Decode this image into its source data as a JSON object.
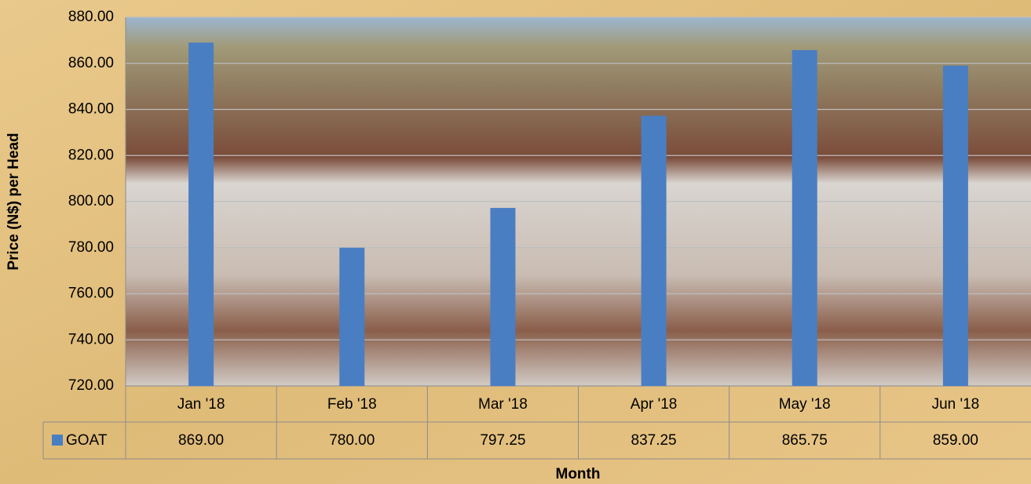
{
  "chart_data": {
    "type": "bar",
    "y_label": "Price (N$) per Head",
    "x_label": "Month",
    "categories": [
      "Jan '18",
      "Feb '18",
      "Mar '18",
      "Apr '18",
      "May '18",
      "Jun '18"
    ],
    "series": [
      {
        "name": "GOAT",
        "color": "#4a7ec2",
        "values": [
          869,
          780,
          797.25,
          837.25,
          865.75,
          859
        ],
        "value_labels": [
          "869.00",
          "780.00",
          "797.25",
          "837.25",
          "865.75",
          "859.00"
        ]
      }
    ],
    "ylim": [
      720,
      880
    ],
    "yticks": [
      {
        "value": 720,
        "label": "720.00"
      },
      {
        "value": 740,
        "label": "740.00"
      },
      {
        "value": 760,
        "label": "760.00"
      },
      {
        "value": 780,
        "label": "780.00"
      },
      {
        "value": 800,
        "label": "800.00"
      },
      {
        "value": 820,
        "label": "820.00"
      },
      {
        "value": 840,
        "label": "840.00"
      },
      {
        "value": 860,
        "label": "860.00"
      },
      {
        "value": 880,
        "label": "880.00"
      }
    ],
    "grid": true,
    "data_table": true
  }
}
